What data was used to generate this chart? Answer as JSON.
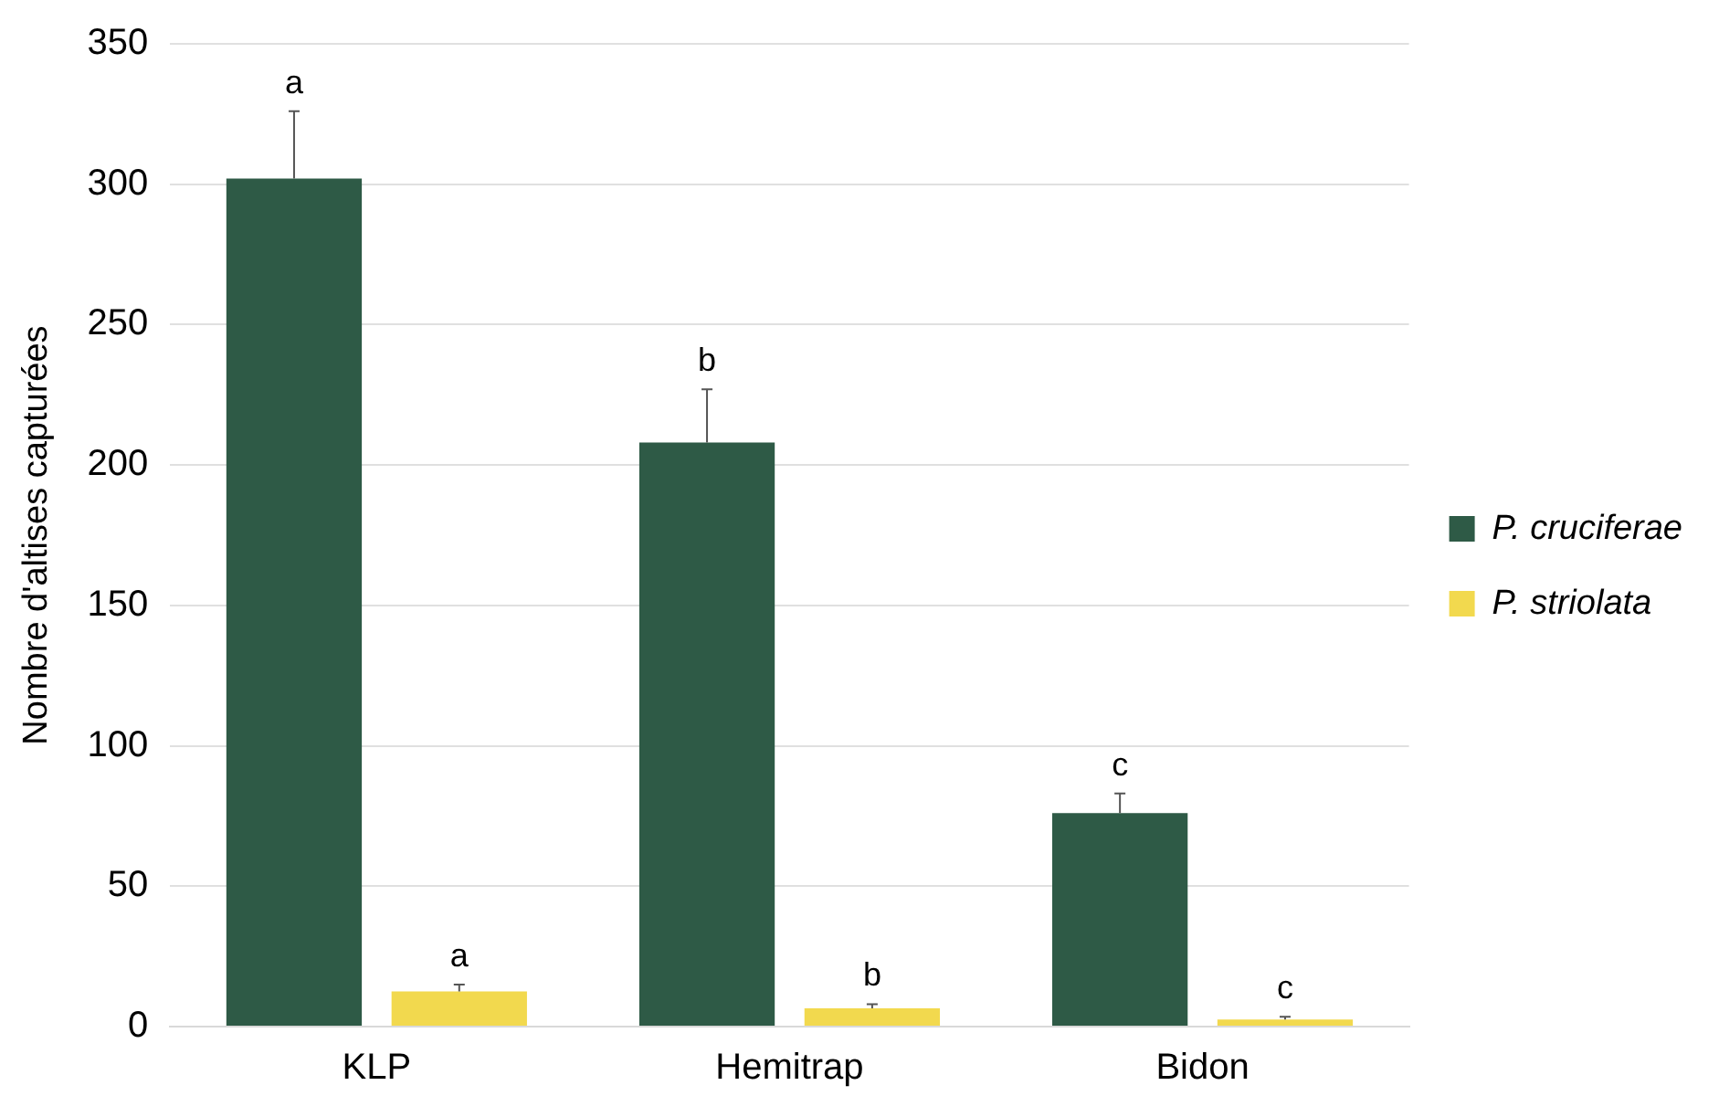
{
  "chart_data": {
    "type": "bar",
    "ylabel": "Nombre d'altises capturées",
    "categories": [
      "KLP",
      "Hemitrap",
      "Bidon"
    ],
    "series": [
      {
        "name": "P. cruciferae",
        "color": "#2e5a46",
        "values": [
          302,
          208,
          76
        ],
        "errors": [
          24,
          19,
          7
        ],
        "value_labels": [
          "a",
          "b",
          "c"
        ]
      },
      {
        "name": "P. striolata",
        "color": "#f2d94e",
        "values": [
          12.5,
          6.5,
          2.5
        ],
        "errors": [
          2.5,
          1.5,
          1
        ],
        "value_labels": [
          "a",
          "b",
          "c"
        ]
      }
    ],
    "ylim": [
      0,
      350
    ],
    "yticks": [
      0,
      50,
      100,
      150,
      200,
      250,
      300,
      350
    ],
    "grid": "y",
    "legend": "right"
  }
}
